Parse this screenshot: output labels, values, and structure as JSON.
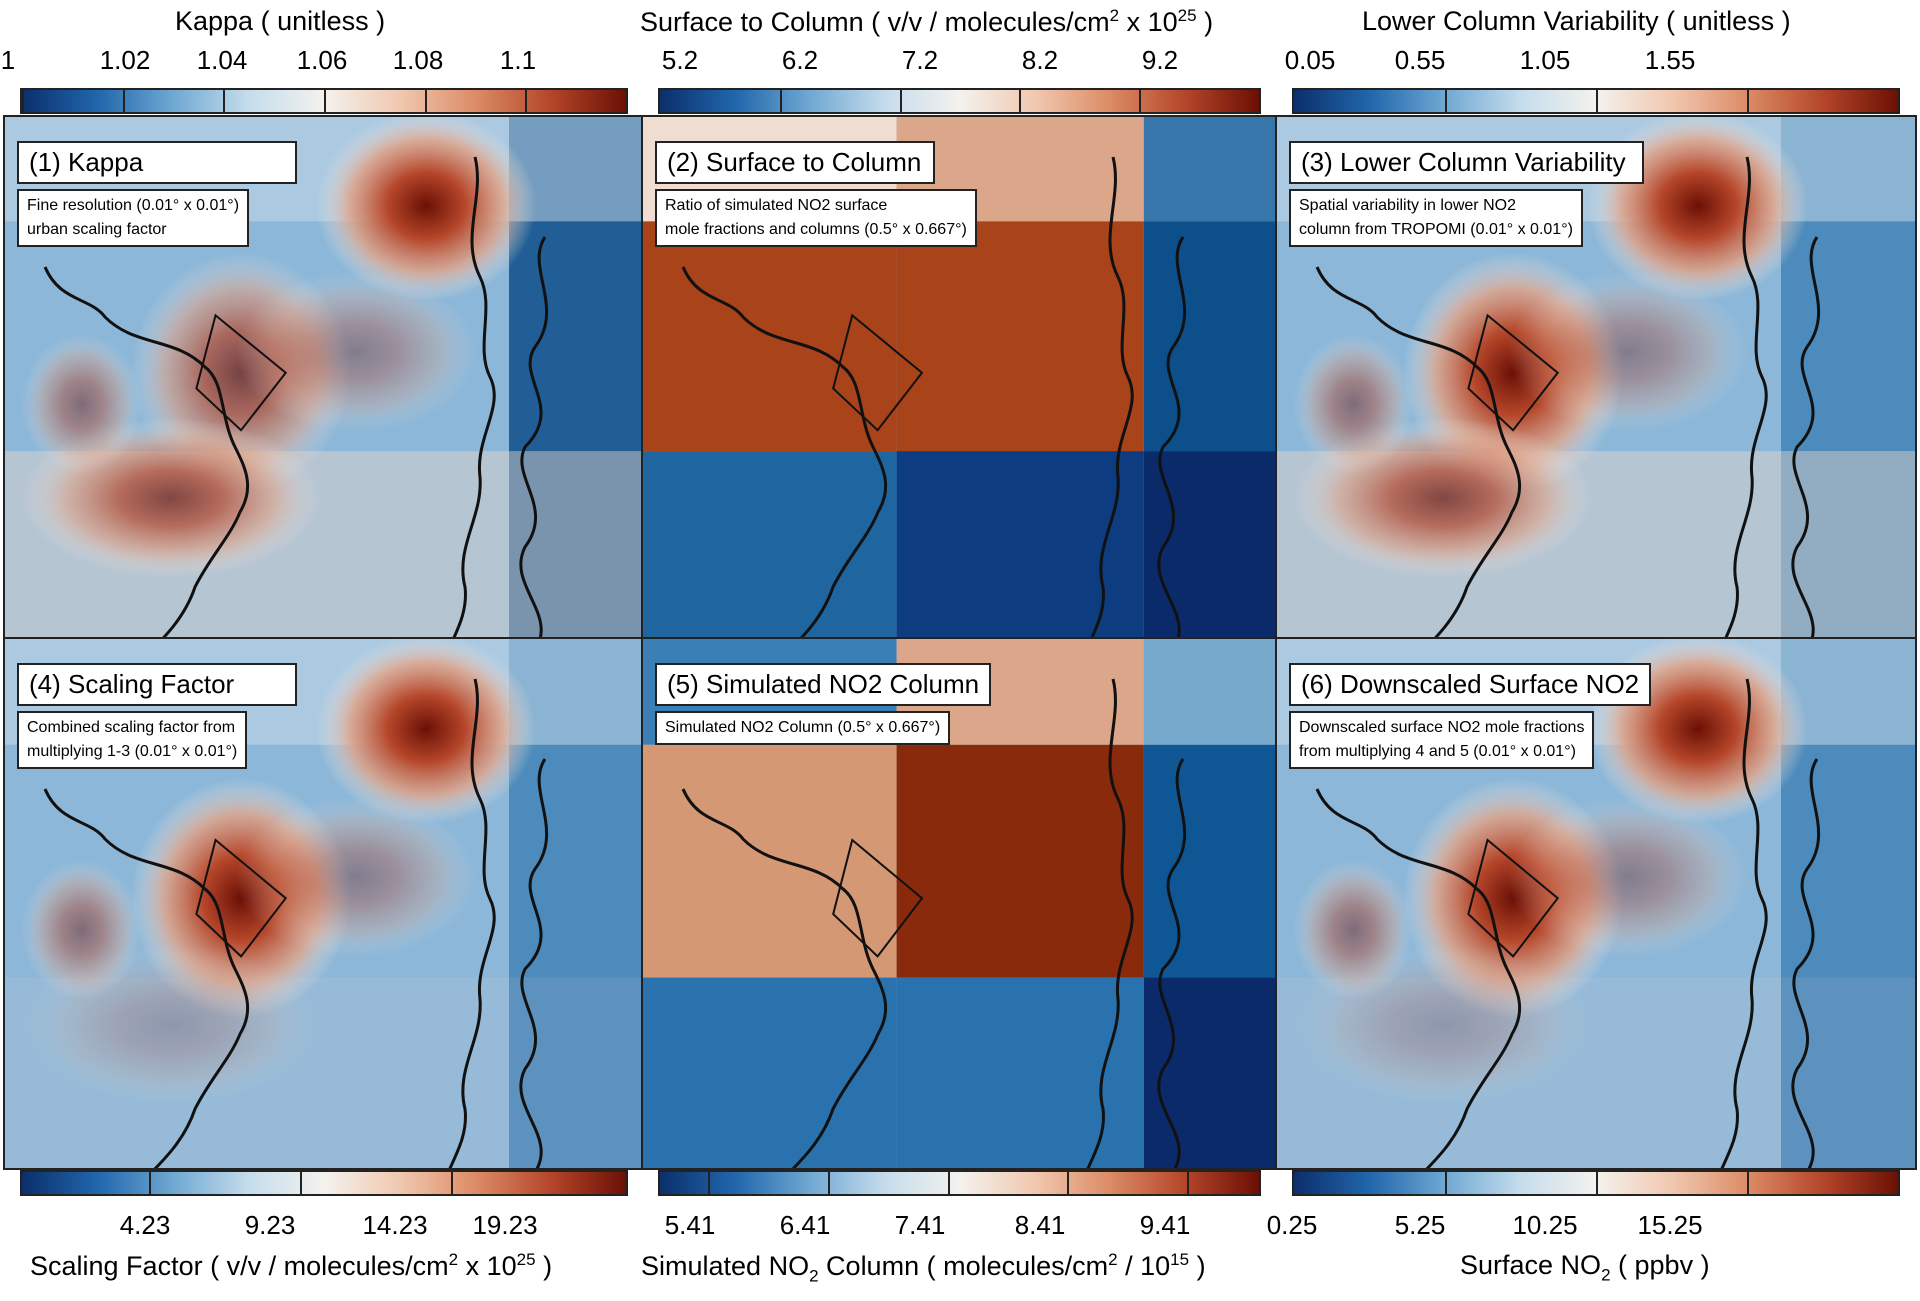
{
  "chart_data": [
    {
      "type": "heatmap",
      "title": "(1) Kappa",
      "note": [
        "Fine resolution (0.01° x 0.01°)",
        " urban scaling factor"
      ],
      "colorbar": {
        "label": "Kappa ( unitless )",
        "ticks": [
          "1",
          "1.02",
          "1.04",
          "1.06",
          "1.08",
          "1.1"
        ],
        "position": "top",
        "range": [
          1,
          1.12
        ]
      }
    },
    {
      "type": "heatmap",
      "title": "(2) Surface to Column",
      "note": [
        "Ratio of simulated NO2 surface",
        "mole fractions and columns (0.5° x 0.667°)"
      ],
      "colorbar": {
        "label": "Surface to Column ( v/v / molecules/cm2 x 10^25 )",
        "ticks": [
          "5.2",
          "6.2",
          "7.2",
          "8.2",
          "9.2"
        ],
        "position": "top",
        "range": [
          5.0,
          10.0
        ]
      }
    },
    {
      "type": "heatmap",
      "title": "(3) Lower Column Variability",
      "note": [
        "Spatial variability in lower NO2",
        "column from TROPOMI (0.01° x 0.01°)"
      ],
      "colorbar": {
        "label": "Lower Column Variability ( unitless )",
        "ticks": [
          "0.05",
          "0.55",
          "1.05",
          "1.55"
        ],
        "position": "top",
        "range": [
          0.05,
          2.05
        ]
      }
    },
    {
      "type": "heatmap",
      "title": "(4) Scaling Factor",
      "note": [
        "Combined scaling factor from",
        "multiplying 1-3 (0.01° x 0.01°)"
      ],
      "colorbar": {
        "label": "Scaling Factor ( v/v / molecules/cm2 x 10^25 )",
        "ticks": [
          "4.23",
          "9.23",
          "14.23",
          "19.23"
        ],
        "position": "bottom",
        "range": [
          0,
          20
        ]
      }
    },
    {
      "type": "heatmap",
      "title": "(5) Simulated NO2 Column",
      "note": [
        "Simulated NO2 Column (0.5° x 0.667°)"
      ],
      "colorbar": {
        "label": "Simulated NO2 Column ( molecules/cm2 / 10^15 )",
        "ticks": [
          "5.41",
          "6.41",
          "7.41",
          "8.41",
          "9.41"
        ],
        "position": "bottom",
        "range": [
          5.0,
          10.0
        ]
      }
    },
    {
      "type": "heatmap",
      "title": "(6) Downscaled Surface NO2",
      "note": [
        "Downscaled surface NO2 mole fractions",
        "from multiplying 4 and 5 (0.01° x 0.01°)"
      ],
      "colorbar": {
        "label": "Surface NO2 ( ppbv )",
        "ticks": [
          "0.25",
          "5.25",
          "10.25",
          "15.25"
        ],
        "position": "bottom",
        "range": [
          0.25,
          20.25
        ]
      }
    }
  ],
  "colors": {
    "low": "#0b2f6b",
    "mid": "#f4f2ee",
    "high": "#6b1005"
  }
}
